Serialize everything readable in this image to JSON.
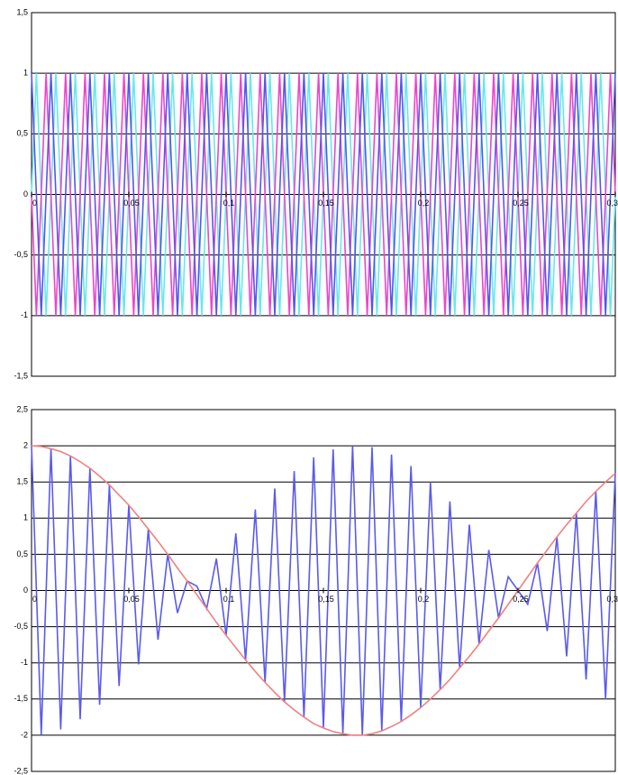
{
  "chart_data": [
    {
      "type": "line",
      "x": [
        0,
        0.0025,
        0.005,
        0.0075,
        0.01,
        0.0125,
        0.015,
        0.0175,
        0.02,
        0.0225,
        0.025,
        0.0275,
        0.03,
        0.0325,
        0.035,
        0.0375,
        0.04,
        0.0425,
        0.045,
        0.0475,
        0.05,
        0.0525,
        0.055,
        0.0575,
        0.06,
        0.0625,
        0.065,
        0.0675,
        0.07,
        0.0725,
        0.075,
        0.0775,
        0.08,
        0.0825,
        0.085,
        0.0875,
        0.09,
        0.0925,
        0.095,
        0.0975,
        0.1,
        0.1025,
        0.105,
        0.1075,
        0.11,
        0.1125,
        0.115,
        0.1175,
        0.12,
        0.1225,
        0.125,
        0.1275,
        0.13,
        0.1325,
        0.135,
        0.1375,
        0.14,
        0.1425,
        0.145,
        0.1475,
        0.15,
        0.1525,
        0.155,
        0.1575,
        0.16,
        0.1625,
        0.165,
        0.1675,
        0.17,
        0.1725,
        0.175,
        0.1775,
        0.18,
        0.1825,
        0.185,
        0.1875,
        0.19,
        0.1925,
        0.195,
        0.1975,
        0.2,
        0.2025,
        0.205,
        0.2075,
        0.21,
        0.2125,
        0.215,
        0.2175,
        0.22,
        0.2225,
        0.225,
        0.2275,
        0.23,
        0.2325,
        0.235,
        0.2375,
        0.24,
        0.2425,
        0.245,
        0.2475,
        0.25,
        0.2525,
        0.255,
        0.2575,
        0.26,
        0.2625,
        0.265,
        0.2675,
        0.27,
        0.2725,
        0.275,
        0.2775,
        0.28,
        0.2825,
        0.285,
        0.2875,
        0.29,
        0.2925,
        0.295,
        0.2975,
        0.3
      ],
      "xlim": [
        0,
        0.3
      ],
      "xticks": [
        0,
        {
          "value": 0.05,
          "label": "0,05"
        },
        {
          "value": 0.1,
          "label": "0,1"
        },
        {
          "value": 0.15,
          "label": "0,15"
        },
        {
          "value": 0.2,
          "label": "0,2"
        },
        {
          "value": 0.25,
          "label": "0,25"
        },
        {
          "value": 0.3,
          "label": "0,3"
        }
      ],
      "ylim": [
        -1.5,
        1.5
      ],
      "yticks": [
        {
          "value": 1.5,
          "label": "1,5"
        },
        1,
        {
          "value": 0.5,
          "label": "0,5"
        },
        0,
        {
          "value": -0.5,
          "label": "-0,5"
        },
        -1,
        {
          "value": -1.5,
          "label": "-1,5"
        }
      ],
      "grid": true,
      "series": [
        {
          "color": "#66e8ec",
          "values": [
            0,
            1,
            0,
            -1,
            0,
            1,
            0,
            -1,
            0,
            1,
            0,
            -1,
            0,
            1,
            0,
            -1,
            0,
            1,
            0,
            -1,
            0,
            1,
            0,
            -1,
            0,
            1,
            0,
            -1,
            0,
            1,
            0,
            -1,
            0,
            1,
            0,
            -1,
            0,
            1,
            0,
            -1,
            0,
            1,
            0,
            -1,
            0,
            1,
            0,
            -1,
            0,
            1,
            0,
            -1,
            0,
            1,
            0,
            -1,
            0,
            1,
            0,
            -1,
            0,
            1,
            0,
            -1,
            0,
            1,
            0,
            -1,
            0,
            1,
            0,
            -1,
            0,
            1,
            0,
            -1,
            0,
            1,
            0,
            -1,
            0,
            1,
            0,
            -1,
            0,
            1,
            0,
            -1,
            0,
            1,
            0,
            -1,
            0,
            1,
            0,
            -1,
            0,
            1,
            0,
            -1,
            0,
            1,
            0,
            -1,
            0,
            1,
            0,
            -1,
            0,
            1,
            0,
            -1,
            0,
            1,
            0,
            -1,
            0,
            1,
            0,
            -1,
            0
          ]
        },
        {
          "color": "#ee44cc",
          "values": [
            0,
            -1,
            0,
            1,
            0,
            -1,
            0,
            1,
            0,
            -1,
            0,
            1,
            0,
            -1,
            0,
            1,
            0,
            -1,
            0,
            1,
            0,
            -1,
            0,
            1,
            0,
            -1,
            0,
            1,
            0,
            -1,
            0,
            1,
            0,
            -1,
            0,
            1,
            0,
            -1,
            0,
            1,
            0,
            -1,
            0,
            1,
            0,
            -1,
            0,
            1,
            0,
            -1,
            0,
            1,
            0,
            -1,
            0,
            1,
            0,
            -1,
            0,
            1,
            0,
            -1,
            0,
            1,
            0,
            -1,
            0,
            1,
            0,
            -1,
            0,
            1,
            0,
            -1,
            0,
            1,
            0,
            -1,
            0,
            1,
            0,
            -1,
            0,
            1,
            0,
            -1,
            0,
            1,
            0,
            -1,
            0,
            1,
            0,
            -1,
            0,
            1,
            0,
            -1,
            0,
            1,
            0,
            -1,
            0,
            1,
            0,
            -1,
            0,
            1,
            0,
            -1,
            0,
            1,
            0,
            -1,
            0,
            1,
            0,
            -1,
            0,
            1,
            0
          ]
        },
        {
          "color": "#5555ee",
          "values": [
            1,
            0,
            -1,
            0,
            1,
            0,
            -1,
            0,
            1,
            0,
            -1,
            0,
            1,
            0,
            -1,
            0,
            1,
            0,
            -1,
            0,
            1,
            0,
            -1,
            0,
            1,
            0,
            -1,
            0,
            1,
            0,
            -1,
            0,
            1,
            0,
            -1,
            0,
            1,
            0,
            -1,
            0,
            1,
            0,
            -1,
            0,
            1,
            0,
            -1,
            0,
            1,
            0,
            -1,
            0,
            1,
            0,
            -1,
            0,
            1,
            0,
            -1,
            0,
            1,
            0,
            -1,
            0,
            1,
            0,
            -1,
            0,
            1,
            0,
            -1,
            0,
            1,
            0,
            -1,
            0,
            1,
            0,
            -1,
            0,
            1,
            0,
            -1,
            0,
            1,
            0,
            -1,
            0,
            1,
            0,
            -1,
            0,
            1,
            0,
            -1,
            0,
            1,
            0,
            -1,
            0,
            1,
            0,
            -1,
            0,
            1,
            0,
            -1,
            0,
            1,
            0,
            -1,
            0,
            1,
            0,
            -1,
            0,
            1,
            0,
            -1,
            0,
            1
          ]
        }
      ]
    },
    {
      "type": "line",
      "x": [
        0,
        0.005,
        0.01,
        0.015,
        0.02,
        0.025,
        0.03,
        0.035,
        0.04,
        0.045,
        0.05,
        0.055,
        0.06,
        0.065,
        0.07,
        0.075,
        0.08,
        0.085,
        0.09,
        0.095,
        0.1,
        0.105,
        0.11,
        0.115,
        0.12,
        0.125,
        0.13,
        0.135,
        0.14,
        0.145,
        0.15,
        0.155,
        0.16,
        0.165,
        0.17,
        0.175,
        0.18,
        0.185,
        0.19,
        0.195,
        0.2,
        0.205,
        0.21,
        0.215,
        0.22,
        0.225,
        0.23,
        0.235,
        0.24,
        0.245,
        0.25,
        0.255,
        0.26,
        0.265,
        0.27,
        0.275,
        0.28,
        0.285,
        0.29,
        0.295,
        0.3
      ],
      "xlim": [
        0,
        0.3
      ],
      "xticks": [
        0,
        {
          "value": 0.05,
          "label": "0,05"
        },
        {
          "value": 0.1,
          "label": "0,1"
        },
        {
          "value": 0.15,
          "label": "0,15"
        },
        {
          "value": 0.2,
          "label": "0,2"
        },
        {
          "value": 0.25,
          "label": "0,25"
        },
        {
          "value": 0.3,
          "label": "0,3"
        }
      ],
      "ylim": [
        -2.5,
        2.5
      ],
      "yticks": [
        {
          "value": 2.5,
          "label": "2,5"
        },
        2,
        {
          "value": 1.5,
          "label": "1,5"
        },
        1,
        {
          "value": 0.5,
          "label": "0,5"
        },
        0,
        {
          "value": -0.5,
          "label": "-0,5"
        },
        -1,
        {
          "value": -1.5,
          "label": "-1,5"
        },
        -2,
        {
          "value": -2.5,
          "label": "-2,5"
        }
      ],
      "grid": true,
      "series": [
        {
          "color": "#5a5aee",
          "values": [
            2,
            -1.99,
            1.96,
            -1.92,
            1.86,
            -1.78,
            1.69,
            -1.58,
            1.46,
            -1.32,
            1.18,
            -1.02,
            0.85,
            -0.68,
            0.5,
            -0.31,
            0.13,
            0.06,
            -0.25,
            0.44,
            -0.62,
            0.79,
            -0.96,
            1.12,
            -1.27,
            1.41,
            -1.54,
            1.65,
            -1.75,
            1.84,
            -1.9,
            1.95,
            -1.98,
            2,
            -2,
            1.98,
            -1.94,
            1.88,
            -1.81,
            1.72,
            -1.62,
            1.5,
            -1.37,
            1.23,
            -1.07,
            0.91,
            -0.74,
            0.56,
            -0.38,
            0.19,
            0,
            -0.19,
            0.38,
            -0.56,
            0.74,
            -0.91,
            1.07,
            -1.23,
            1.37,
            -1.5,
            1.62
          ]
        },
        {
          "color": "#f08080",
          "values": [
            2,
            1.99,
            1.96,
            1.92,
            1.86,
            1.78,
            1.69,
            1.58,
            1.46,
            1.32,
            1.18,
            1.02,
            0.85,
            0.68,
            0.5,
            0.31,
            0.13,
            -0.06,
            -0.25,
            -0.44,
            -0.62,
            -0.79,
            -0.96,
            -1.12,
            -1.27,
            -1.41,
            -1.54,
            -1.65,
            -1.75,
            -1.84,
            -1.9,
            -1.95,
            -1.98,
            -2,
            -2,
            -1.98,
            -1.94,
            -1.88,
            -1.81,
            -1.72,
            -1.62,
            -1.5,
            -1.37,
            -1.23,
            -1.07,
            -0.91,
            -0.74,
            -0.56,
            -0.38,
            -0.19,
            0,
            0.19,
            0.38,
            0.56,
            0.74,
            0.91,
            1.07,
            1.23,
            1.37,
            1.5,
            1.62
          ]
        }
      ]
    }
  ]
}
